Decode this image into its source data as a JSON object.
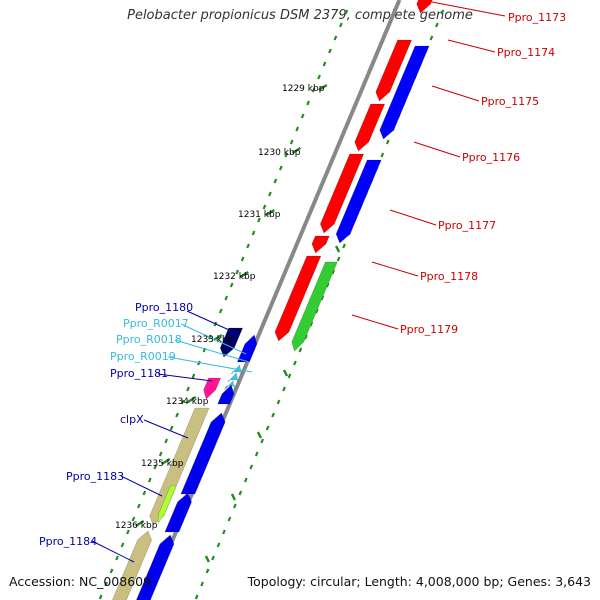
{
  "title": "Pelobacter propionicus DSM 2379, complete genome",
  "accession": "Accession: NC_008609",
  "topology_text": "Topology: circular; Length: 4,008,000 bp; Genes: 3,643",
  "colors": {
    "forward_red": "#ff0000",
    "forward_blue": "#0000ff",
    "forward_green": "#33cc33",
    "reverse_blue": "#0000ee",
    "reverse_navy": "#000066",
    "reverse_magenta": "#ff1493",
    "reverse_tan": "#c8bf80",
    "reverse_lime": "#adff2f",
    "rna_cyan": "#33ccee",
    "label_forward": "#cc0000",
    "label_reverse": "#0000aa",
    "label_rna": "#33bbdd",
    "tick": "#228b22",
    "backbone": "#888888"
  },
  "scale_labels": [
    "1229 kbp",
    "1230 kbp",
    "1231 kbp",
    "1232 kbp",
    "1233 kbp",
    "1234 kbp",
    "1235 kbp",
    "1236 kbp"
  ],
  "forward_labels": [
    "Ppro_1173",
    "Ppro_1174",
    "Ppro_1175",
    "Ppro_1176",
    "Ppro_1177",
    "Ppro_1178",
    "Ppro_1179"
  ],
  "reverse_labels": [
    "Ppro_1180",
    "Ppro_R0017",
    "Ppro_R0018",
    "Ppro_R0019",
    "Ppro_1181",
    "clpX",
    "Ppro_1183",
    "Ppro_1184"
  ]
}
